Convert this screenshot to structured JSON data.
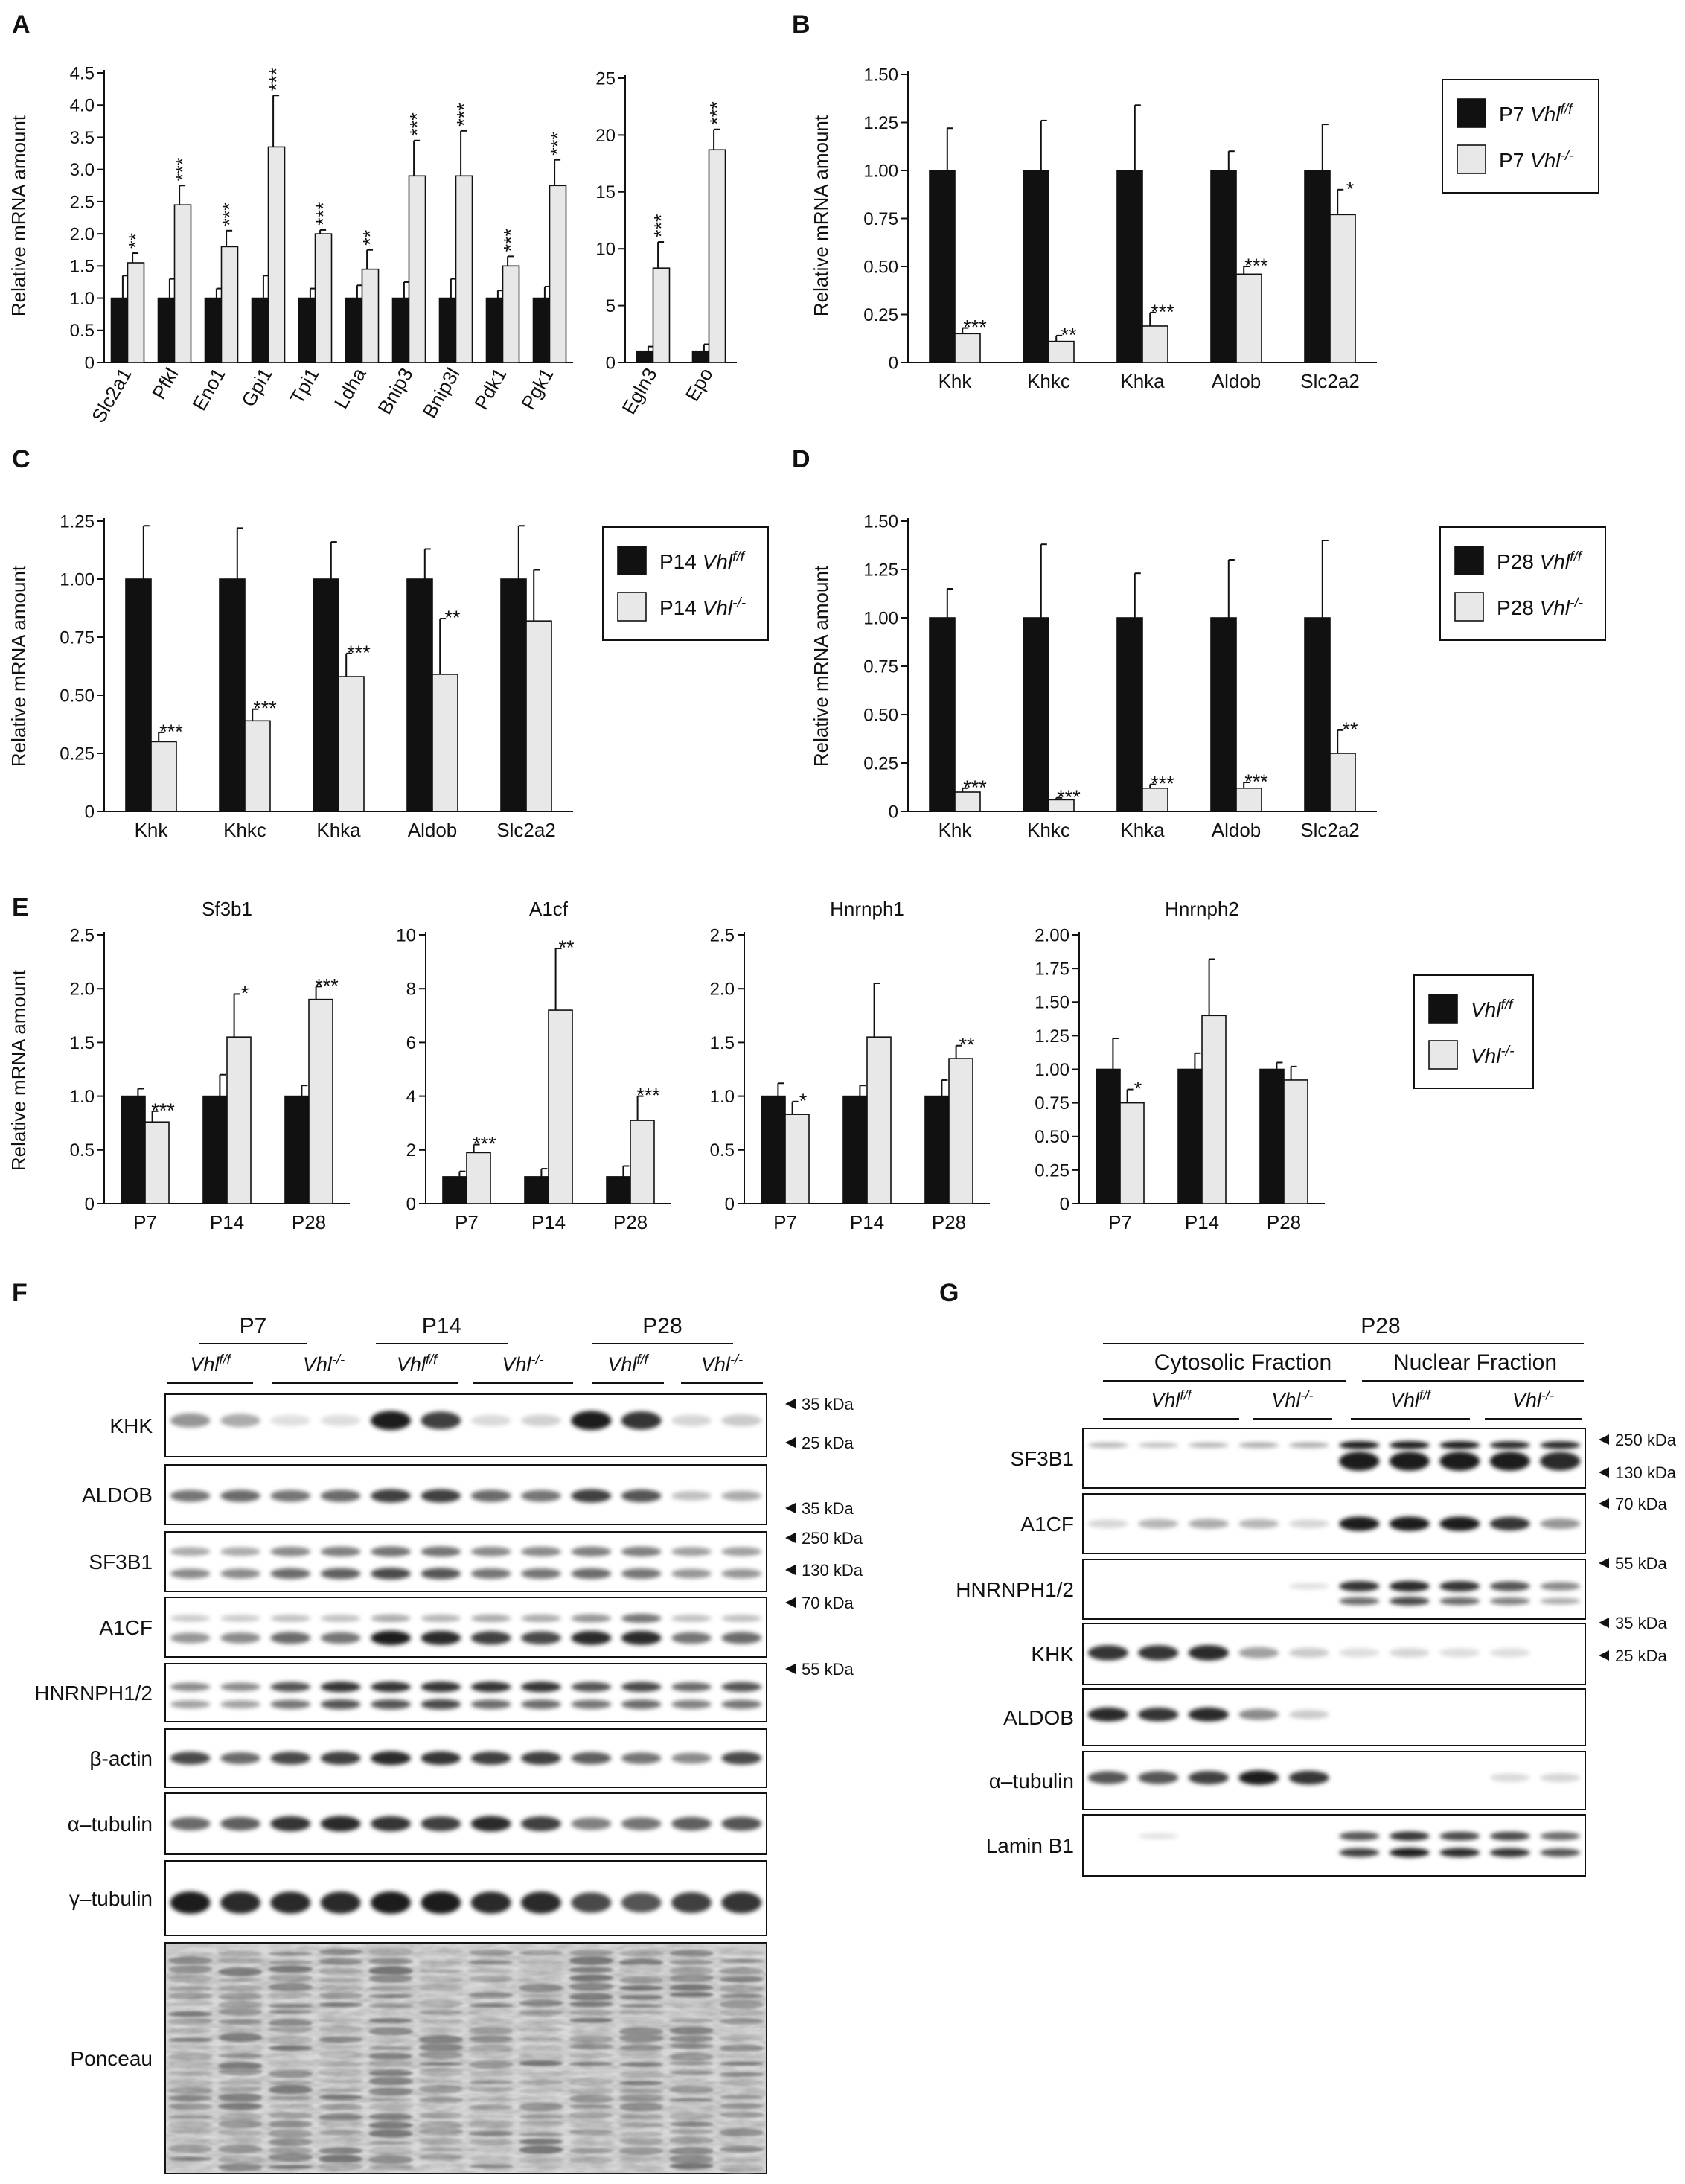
{
  "figure_title": "",
  "colors": {
    "black_bar": "#111111",
    "light_bar": "#e8e8e8",
    "axis": "#111111"
  },
  "panels": {
    "A": {
      "letter": "A",
      "ylabel": "Relative mRNA amount"
    },
    "B": {
      "letter": "B",
      "ylabel": "Relative mRNA amount",
      "legend": [
        {
          "prefix": "P7 ",
          "gene": "Vhl",
          "sup": "f/f",
          "color": "#111111"
        },
        {
          "prefix": "P7 ",
          "gene": "Vhl",
          "sup": "-/-",
          "color": "#e8e8e8"
        }
      ]
    },
    "C": {
      "letter": "C",
      "ylabel": "Relative mRNA amount",
      "legend": [
        {
          "prefix": "P14 ",
          "gene": "Vhl",
          "sup": "f/f",
          "color": "#111111"
        },
        {
          "prefix": "P14 ",
          "gene": "Vhl",
          "sup": "-/-",
          "color": "#e8e8e8"
        }
      ]
    },
    "D": {
      "letter": "D",
      "ylabel": "Relative mRNA amount",
      "legend": [
        {
          "prefix": "P28 ",
          "gene": "Vhl",
          "sup": "f/f",
          "color": "#111111"
        },
        {
          "prefix": "P28 ",
          "gene": "Vhl",
          "sup": "-/-",
          "color": "#e8e8e8"
        }
      ]
    },
    "E": {
      "letter": "E",
      "ylabel": "Relative mRNA amount",
      "legend": [
        {
          "prefix": "",
          "gene": "Vhl",
          "sup": "f/f",
          "color": "#111111"
        },
        {
          "prefix": "",
          "gene": "Vhl",
          "sup": "-/-",
          "color": "#e8e8e8"
        }
      ]
    },
    "F": {
      "letter": "F",
      "ages": [
        "P7",
        "P14",
        "P28"
      ],
      "genotypes": [
        {
          "gene": "Vhl",
          "sup": "f/f"
        },
        {
          "gene": "Vhl",
          "sup": "-/-"
        }
      ],
      "blots": [
        {
          "label": "KHK",
          "markers": [
            "35 kDa",
            "25 kDa"
          ]
        },
        {
          "label": "ALDOB",
          "markers": [
            "35 kDa"
          ]
        },
        {
          "label": "SF3B1",
          "markers": [
            "250 kDa",
            "130 kDa"
          ]
        },
        {
          "label": "A1CF",
          "markers": [
            "70 kDa"
          ]
        },
        {
          "label": "HNRNPH1/2",
          "markers": [
            "55 kDa"
          ]
        },
        {
          "label": "β-actin",
          "markers": []
        },
        {
          "label": "α–tubulin",
          "markers": []
        },
        {
          "label": "γ–tubulin",
          "markers": []
        },
        {
          "label": "Ponceau",
          "markers": []
        }
      ]
    },
    "G": {
      "letter": "G",
      "age": "P28",
      "fractions": [
        "Cytosolic Fraction",
        "Nuclear Fraction"
      ],
      "genotypes": [
        {
          "gene": "Vhl",
          "sup": "f/f"
        },
        {
          "gene": "Vhl",
          "sup": "-/-"
        }
      ],
      "blots": [
        {
          "label": "SF3B1",
          "markers": [
            "250 kDa",
            "130 kDa"
          ]
        },
        {
          "label": "A1CF",
          "markers": [
            "70 kDa"
          ]
        },
        {
          "label": "HNRNPH1/2",
          "markers": [
            "55 kDa"
          ]
        },
        {
          "label": "KHK",
          "markers": [
            "35 kDa",
            "25 kDa"
          ]
        },
        {
          "label": "ALDOB",
          "markers": []
        },
        {
          "label": "α–tubulin",
          "markers": []
        },
        {
          "label": "Lamin B1",
          "markers": []
        }
      ]
    }
  },
  "chart_data": [
    {
      "id": "A1",
      "type": "bar",
      "categories": [
        "Slc2a1",
        "Pfkl",
        "Eno1",
        "Gpi1",
        "Tpi1",
        "Ldha",
        "Bnip3",
        "Bnip3l",
        "Pdk1",
        "Pgk1"
      ],
      "series": [
        {
          "values": [
            1,
            1,
            1,
            1,
            1,
            1,
            1,
            1,
            1,
            1
          ],
          "errors": [
            0.35,
            0.3,
            0.15,
            0.35,
            0.15,
            0.2,
            0.25,
            0.3,
            0.12,
            0.18
          ]
        },
        {
          "values": [
            1.55,
            2.45,
            1.8,
            3.35,
            2.0,
            1.45,
            2.9,
            2.9,
            1.5,
            2.75
          ],
          "errors": [
            0.15,
            0.3,
            0.25,
            0.8,
            0.06,
            0.3,
            0.55,
            0.7,
            0.15,
            0.4
          ],
          "sig": [
            "**",
            "***",
            "***",
            "***",
            "***",
            "**",
            "***",
            "***",
            "***",
            "***"
          ]
        }
      ],
      "yticks": [
        "0",
        "0.5",
        "1.0",
        "1.5",
        "2.0",
        "2.5",
        "3.0",
        "3.5",
        "4.0",
        "4.5"
      ],
      "ylim": [
        0,
        4.5
      ]
    },
    {
      "id": "A2",
      "type": "bar",
      "categories": [
        "Egln3",
        "Epo"
      ],
      "series": [
        {
          "values": [
            1,
            1
          ],
          "errors": [
            0.4,
            0.6
          ]
        },
        {
          "values": [
            8.3,
            18.7
          ],
          "errors": [
            2.3,
            1.8
          ],
          "sig": [
            "***",
            "***"
          ]
        }
      ],
      "yticks": [
        "0",
        "5",
        "10",
        "15",
        "20",
        "25"
      ],
      "ylim": [
        0,
        25
      ]
    },
    {
      "id": "B",
      "type": "bar",
      "categories": [
        "Khk",
        "Khkc",
        "Khka",
        "Aldob",
        "Slc2a2"
      ],
      "series": [
        {
          "values": [
            1,
            1,
            1,
            1,
            1
          ],
          "errors": [
            0.22,
            0.26,
            0.34,
            0.1,
            0.24
          ]
        },
        {
          "values": [
            0.15,
            0.11,
            0.19,
            0.46,
            0.77
          ],
          "errors": [
            0.03,
            0.03,
            0.07,
            0.04,
            0.13
          ],
          "sig": [
            "***",
            "**",
            "***",
            "***",
            "*"
          ]
        }
      ],
      "yticks": [
        "0",
        "0.25",
        "0.50",
        "0.75",
        "1.00",
        "1.25",
        "1.50"
      ],
      "ylim": [
        0,
        1.5
      ]
    },
    {
      "id": "C",
      "type": "bar",
      "categories": [
        "Khk",
        "Khkc",
        "Khka",
        "Aldob",
        "Slc2a2"
      ],
      "series": [
        {
          "values": [
            1,
            1,
            1,
            1,
            1
          ],
          "errors": [
            0.23,
            0.22,
            0.16,
            0.13,
            0.23
          ]
        },
        {
          "values": [
            0.3,
            0.39,
            0.58,
            0.59,
            0.82
          ],
          "errors": [
            0.04,
            0.05,
            0.1,
            0.24,
            0.22
          ],
          "sig": [
            "***",
            "***",
            "***",
            "**",
            ""
          ]
        }
      ],
      "yticks": [
        "0",
        "0.25",
        "0.50",
        "0.75",
        "1.00",
        "1.25"
      ],
      "ylim": [
        0,
        1.25
      ]
    },
    {
      "id": "D",
      "type": "bar",
      "categories": [
        "Khk",
        "Khkc",
        "Khka",
        "Aldob",
        "Slc2a2"
      ],
      "series": [
        {
          "values": [
            1,
            1,
            1,
            1,
            1
          ],
          "errors": [
            0.15,
            0.38,
            0.23,
            0.3,
            0.4
          ]
        },
        {
          "values": [
            0.1,
            0.06,
            0.12,
            0.12,
            0.3
          ],
          "errors": [
            0.02,
            0.01,
            0.02,
            0.03,
            0.12
          ],
          "sig": [
            "***",
            "***",
            "***",
            "***",
            "**"
          ]
        }
      ],
      "yticks": [
        "0",
        "0.25",
        "0.50",
        "0.75",
        "1.00",
        "1.25",
        "1.50"
      ],
      "ylim": [
        0,
        1.5
      ]
    },
    {
      "id": "E1",
      "type": "bar",
      "title": "Sf3b1",
      "categories": [
        "P7",
        "P14",
        "P28"
      ],
      "series": [
        {
          "values": [
            1,
            1,
            1
          ],
          "errors": [
            0.07,
            0.2,
            0.1
          ]
        },
        {
          "values": [
            0.76,
            1.55,
            1.9
          ],
          "errors": [
            0.1,
            0.4,
            0.12
          ],
          "sig": [
            "***",
            "*",
            "***"
          ]
        }
      ],
      "yticks": [
        "0",
        "0.5",
        "1.0",
        "1.5",
        "2.0",
        "2.5"
      ],
      "ylim": [
        0,
        2.5
      ]
    },
    {
      "id": "E2",
      "type": "bar",
      "title": "A1cf",
      "categories": [
        "P7",
        "P14",
        "P28"
      ],
      "series": [
        {
          "values": [
            1,
            1,
            1
          ],
          "errors": [
            0.2,
            0.3,
            0.4
          ]
        },
        {
          "values": [
            1.9,
            7.2,
            3.1
          ],
          "errors": [
            0.3,
            2.3,
            0.9
          ],
          "sig": [
            "***",
            "**",
            "***"
          ]
        }
      ],
      "yticks": [
        "0",
        "2",
        "4",
        "6",
        "8",
        "10"
      ],
      "ylim": [
        0,
        10
      ]
    },
    {
      "id": "E3",
      "type": "bar",
      "title": "Hnrnph1",
      "categories": [
        "P7",
        "P14",
        "P28"
      ],
      "series": [
        {
          "values": [
            1,
            1,
            1
          ],
          "errors": [
            0.12,
            0.1,
            0.15
          ]
        },
        {
          "values": [
            0.83,
            1.55,
            1.35
          ],
          "errors": [
            0.12,
            0.5,
            0.12
          ],
          "sig": [
            "*",
            "",
            "**"
          ]
        }
      ],
      "yticks": [
        "0",
        "0.5",
        "1.0",
        "1.5",
        "2.0",
        "2.5"
      ],
      "ylim": [
        0,
        2.5
      ]
    },
    {
      "id": "E4",
      "type": "bar",
      "title": "Hnrnph2",
      "categories": [
        "P7",
        "P14",
        "P28"
      ],
      "series": [
        {
          "values": [
            1,
            1,
            1
          ],
          "errors": [
            0.23,
            0.12,
            0.05
          ]
        },
        {
          "values": [
            0.75,
            1.4,
            0.92
          ],
          "errors": [
            0.1,
            0.42,
            0.1
          ],
          "sig": [
            "*",
            "",
            ""
          ]
        }
      ],
      "yticks": [
        "0",
        "0.25",
        "0.50",
        "0.75",
        "1.00",
        "1.25",
        "1.50",
        "1.75",
        "2.00"
      ],
      "ylim": [
        0,
        2
      ]
    }
  ]
}
